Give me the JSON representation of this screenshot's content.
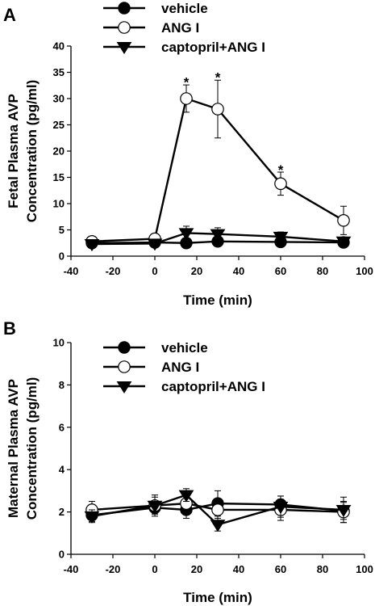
{
  "chart_data": [
    {
      "panel": "A",
      "type": "line",
      "xlabel": "Time (min)",
      "ylabel": [
        "Fetal Plasma AVP",
        "Concentration (pg/ml)"
      ],
      "xlim": [
        -40,
        100
      ],
      "ylim": [
        0,
        40
      ],
      "xticks": [
        -40,
        -20,
        0,
        20,
        40,
        60,
        80,
        100
      ],
      "yticks": [
        0,
        5,
        10,
        15,
        20,
        25,
        30,
        35,
        40
      ],
      "grid": false,
      "legend_position": "top-left, outside plot",
      "x": [
        -30,
        0,
        15,
        30,
        60,
        90
      ],
      "series": [
        {
          "name": "vehicle",
          "marker": "filled-circle",
          "values": [
            2.5,
            2.6,
            2.5,
            2.8,
            2.7,
            2.6
          ],
          "errors": [
            0.5,
            0.6,
            0.5,
            0.6,
            0.6,
            0.5
          ]
        },
        {
          "name": "ANG I",
          "marker": "open-circle",
          "values": [
            2.8,
            3.3,
            30.0,
            28.0,
            13.8,
            6.8
          ],
          "errors": [
            0.6,
            0.7,
            2.6,
            5.5,
            2.2,
            2.7
          ]
        },
        {
          "name": "captopril+ANG I",
          "marker": "filled-triangle-down",
          "values": [
            2.3,
            2.4,
            4.4,
            4.2,
            3.7,
            2.8
          ],
          "errors": [
            0.4,
            0.5,
            1.3,
            1.2,
            0.9,
            0.5
          ]
        }
      ],
      "annotations": [
        {
          "text": "*",
          "x": 15,
          "y": 33.5
        },
        {
          "text": "*",
          "x": 30,
          "y": 34.4
        },
        {
          "text": "*",
          "x": 60,
          "y": 16.8
        }
      ]
    },
    {
      "panel": "B",
      "type": "line",
      "xlabel": "Time (min)",
      "ylabel": [
        "Maternal Plasma AVP",
        "Concentration (pg/ml)"
      ],
      "xlim": [
        -40,
        100
      ],
      "ylim": [
        0,
        10
      ],
      "xticks": [
        -40,
        -20,
        0,
        20,
        40,
        60,
        80,
        100
      ],
      "yticks": [
        0,
        2,
        4,
        6,
        8,
        10
      ],
      "grid": false,
      "legend_position": "top-center, inside plot",
      "x": [
        -30,
        0,
        15,
        30,
        60,
        90
      ],
      "series": [
        {
          "name": "vehicle",
          "marker": "filled-circle",
          "values": [
            1.85,
            2.2,
            2.1,
            2.4,
            2.35,
            2.05
          ],
          "errors": [
            0.3,
            0.3,
            0.4,
            0.6,
            0.4,
            0.4
          ]
        },
        {
          "name": "ANG I",
          "marker": "open-circle",
          "values": [
            2.1,
            2.3,
            2.4,
            2.1,
            2.1,
            2.0
          ],
          "errors": [
            0.4,
            0.5,
            0.5,
            0.5,
            0.5,
            0.5
          ]
        },
        {
          "name": "captopril+ANG I",
          "marker": "filled-triangle-down",
          "values": [
            1.8,
            2.3,
            2.8,
            1.4,
            2.25,
            2.1
          ],
          "errors": [
            0.3,
            0.4,
            0.3,
            0.3,
            0.5,
            0.6
          ]
        }
      ],
      "annotations": []
    }
  ]
}
